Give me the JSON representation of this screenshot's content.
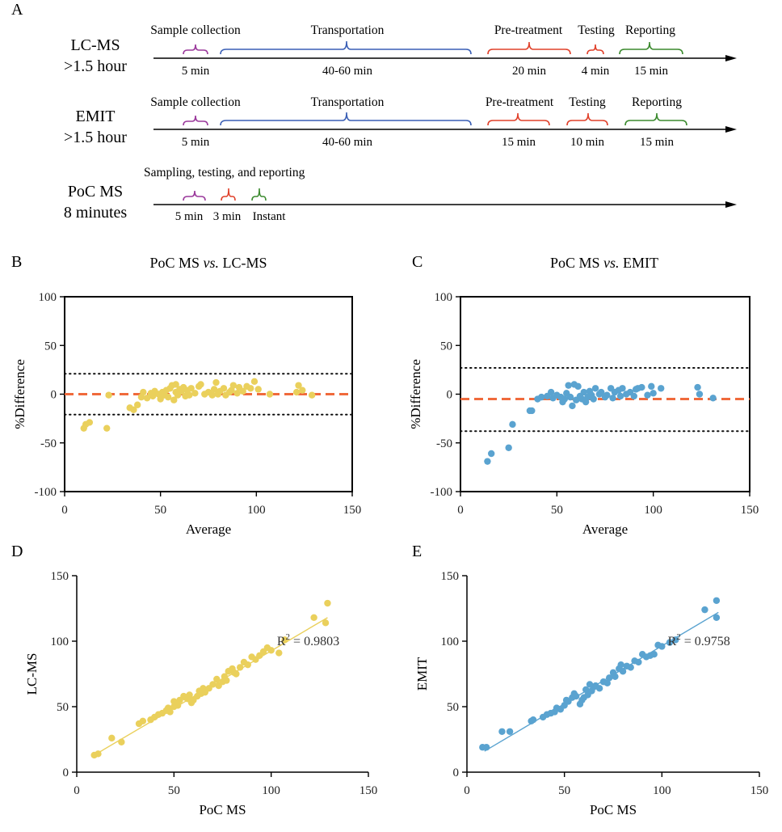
{
  "panelA": {
    "letter": "A",
    "rows": [
      {
        "name_line1": "LC-MS",
        "name_line2": ">1.5 hour",
        "steps": [
          {
            "label": "Sample collection",
            "time": "5 min",
            "color": "#9b3a9c"
          },
          {
            "label": "Transportation",
            "time": "40-60 min",
            "color": "#3a5fb5"
          },
          {
            "label": "Pre-treatment",
            "time": "20 min",
            "color": "#e0402a"
          },
          {
            "label": "Testing",
            "time": "4 min",
            "color": "#e0402a"
          },
          {
            "label": "Reporting",
            "time": "15 min",
            "color": "#3b8a2e"
          }
        ]
      },
      {
        "name_line1": "EMIT",
        "name_line2": ">1.5 hour",
        "steps": [
          {
            "label": "Sample collection",
            "time": "5 min",
            "color": "#9b3a9c"
          },
          {
            "label": "Transportation",
            "time": "40-60 min",
            "color": "#3a5fb5"
          },
          {
            "label": "Pre-treatment",
            "time": "15 min",
            "color": "#e0402a"
          },
          {
            "label": "Testing",
            "time": "10 min",
            "color": "#e0402a"
          },
          {
            "label": "Reporting",
            "time": "15 min",
            "color": "#3b8a2e"
          }
        ]
      },
      {
        "name_line1": "PoC MS",
        "name_line2": "8 minutes",
        "group_label": "Sampling, testing, and reporting",
        "steps": [
          {
            "label": "",
            "time": "5 min",
            "color": "#9b3a9c"
          },
          {
            "label": "",
            "time": "3 min",
            "color": "#e0402a"
          },
          {
            "label": "",
            "time": "Instant",
            "color": "#3b8a2e"
          }
        ]
      }
    ]
  },
  "chart_data": [
    {
      "panel": "B",
      "type": "scatter",
      "title": "PoC MS vs. LC-MS",
      "title_parts": [
        "PoC MS ",
        "vs.",
        " LC-MS"
      ],
      "xlabel": "Average",
      "ylabel": "%Difference",
      "xlim": [
        0,
        150
      ],
      "ylim": [
        -100,
        100
      ],
      "xticks": [
        "0",
        "50",
        "100",
        "150"
      ],
      "yticks": [
        "-100",
        "-50",
        "0",
        "50",
        "100"
      ],
      "color": "#ead05c",
      "mean_line": {
        "y": 0,
        "color": "#f06a3c"
      },
      "loa": [
        21,
        -21
      ],
      "points": [
        [
          10,
          -35
        ],
        [
          11,
          -31
        ],
        [
          13,
          -29
        ],
        [
          22,
          -35
        ],
        [
          23,
          -1
        ],
        [
          34,
          -14
        ],
        [
          36,
          -16
        ],
        [
          38,
          -11
        ],
        [
          40,
          -3
        ],
        [
          41,
          2
        ],
        [
          43,
          -4
        ],
        [
          45,
          1
        ],
        [
          46,
          -2
        ],
        [
          47,
          3
        ],
        [
          49,
          0
        ],
        [
          50,
          -5
        ],
        [
          51,
          2
        ],
        [
          52,
          -1
        ],
        [
          53,
          4
        ],
        [
          54,
          -3
        ],
        [
          55,
          6
        ],
        [
          56,
          9
        ],
        [
          57,
          -6
        ],
        [
          58,
          10
        ],
        [
          58,
          2
        ],
        [
          59,
          -1
        ],
        [
          60,
          5
        ],
        [
          61,
          3
        ],
        [
          62,
          7
        ],
        [
          63,
          -2
        ],
        [
          64,
          4
        ],
        [
          65,
          -1
        ],
        [
          66,
          6
        ],
        [
          68,
          1
        ],
        [
          70,
          8
        ],
        [
          71,
          10
        ],
        [
          73,
          0
        ],
        [
          75,
          2
        ],
        [
          77,
          -1
        ],
        [
          78,
          5
        ],
        [
          79,
          12
        ],
        [
          80,
          0
        ],
        [
          81,
          3
        ],
        [
          83,
          6
        ],
        [
          84,
          -1
        ],
        [
          86,
          2
        ],
        [
          87,
          4
        ],
        [
          88,
          9
        ],
        [
          90,
          1
        ],
        [
          91,
          7
        ],
        [
          93,
          3
        ],
        [
          95,
          8
        ],
        [
          97,
          6
        ],
        [
          99,
          13
        ],
        [
          101,
          5
        ],
        [
          107,
          0
        ],
        [
          121,
          2
        ],
        [
          122,
          9
        ],
        [
          124,
          4
        ],
        [
          129,
          -1
        ]
      ]
    },
    {
      "panel": "C",
      "type": "scatter",
      "title": "PoC MS vs. EMIT",
      "title_parts": [
        "PoC MS ",
        "vs.",
        " EMIT"
      ],
      "xlabel": "Average",
      "ylabel": "%Difference",
      "xlim": [
        0,
        150
      ],
      "ylim": [
        -100,
        100
      ],
      "xticks": [
        "0",
        "50",
        "100",
        "150"
      ],
      "yticks": [
        "-100",
        "-50",
        "0",
        "50",
        "100"
      ],
      "color": "#5aa3d0",
      "mean_line": {
        "y": -5,
        "color": "#f06a3c"
      },
      "loa": [
        27,
        -38
      ],
      "points": [
        [
          14,
          -69
        ],
        [
          16,
          -61
        ],
        [
          25,
          -55
        ],
        [
          27,
          -31
        ],
        [
          36,
          -17
        ],
        [
          37,
          -17
        ],
        [
          40,
          -5
        ],
        [
          42,
          -3
        ],
        [
          45,
          -2
        ],
        [
          47,
          2
        ],
        [
          48,
          -4
        ],
        [
          50,
          -1
        ],
        [
          52,
          -3
        ],
        [
          53,
          -8
        ],
        [
          54,
          -5
        ],
        [
          55,
          1
        ],
        [
          56,
          9
        ],
        [
          57,
          -3
        ],
        [
          58,
          -12
        ],
        [
          59,
          10
        ],
        [
          60,
          -6
        ],
        [
          61,
          8
        ],
        [
          62,
          -2
        ],
        [
          63,
          -5
        ],
        [
          64,
          2
        ],
        [
          65,
          -8
        ],
        [
          66,
          -3
        ],
        [
          67,
          3
        ],
        [
          68,
          -1
        ],
        [
          69,
          -5
        ],
        [
          70,
          6
        ],
        [
          72,
          0
        ],
        [
          73,
          2
        ],
        [
          75,
          -3
        ],
        [
          76,
          -1
        ],
        [
          78,
          6
        ],
        [
          79,
          -4
        ],
        [
          80,
          2
        ],
        [
          82,
          4
        ],
        [
          83,
          -2
        ],
        [
          84,
          6
        ],
        [
          86,
          0
        ],
        [
          88,
          2
        ],
        [
          90,
          -2
        ],
        [
          91,
          5
        ],
        [
          92,
          6
        ],
        [
          94,
          7
        ],
        [
          97,
          -1
        ],
        [
          99,
          8
        ],
        [
          100,
          1
        ],
        [
          104,
          6
        ],
        [
          123,
          7
        ],
        [
          124,
          0
        ],
        [
          131,
          -4
        ]
      ]
    },
    {
      "panel": "D",
      "type": "scatter",
      "xlabel": "PoC MS",
      "ylabel": "LC-MS",
      "xlim": [
        0,
        150
      ],
      "ylim": [
        0,
        150
      ],
      "xticks": [
        "0",
        "50",
        "100",
        "150"
      ],
      "yticks": [
        "0",
        "50",
        "100",
        "150"
      ],
      "color": "#ead05c",
      "annotation": {
        "base": "R",
        "sup": "2",
        "rest": " = 0.9803"
      },
      "fit_line": [
        [
          9,
          13
        ],
        [
          129,
          118
        ]
      ],
      "points": [
        [
          9,
          13
        ],
        [
          11,
          14
        ],
        [
          18,
          26
        ],
        [
          23,
          23
        ],
        [
          32,
          37
        ],
        [
          34,
          39
        ],
        [
          38,
          40
        ],
        [
          40,
          42
        ],
        [
          42,
          44
        ],
        [
          44,
          45
        ],
        [
          46,
          47
        ],
        [
          47,
          49
        ],
        [
          48,
          46
        ],
        [
          50,
          50
        ],
        [
          50,
          54
        ],
        [
          52,
          51
        ],
        [
          53,
          55
        ],
        [
          55,
          58
        ],
        [
          56,
          57
        ],
        [
          57,
          56
        ],
        [
          58,
          59
        ],
        [
          59,
          53
        ],
        [
          60,
          55
        ],
        [
          62,
          58
        ],
        [
          63,
          62
        ],
        [
          64,
          60
        ],
        [
          65,
          64
        ],
        [
          66,
          61
        ],
        [
          68,
          64
        ],
        [
          70,
          67
        ],
        [
          72,
          71
        ],
        [
          73,
          66
        ],
        [
          75,
          69
        ],
        [
          76,
          73
        ],
        [
          77,
          70
        ],
        [
          78,
          77
        ],
        [
          80,
          79
        ],
        [
          81,
          76
        ],
        [
          82,
          75
        ],
        [
          84,
          80
        ],
        [
          86,
          84
        ],
        [
          88,
          82
        ],
        [
          90,
          88
        ],
        [
          92,
          86
        ],
        [
          94,
          89
        ],
        [
          96,
          92
        ],
        [
          98,
          95
        ],
        [
          100,
          93
        ],
        [
          104,
          91
        ],
        [
          107,
          101
        ],
        [
          122,
          118
        ],
        [
          128,
          114
        ],
        [
          129,
          129
        ]
      ]
    },
    {
      "panel": "E",
      "type": "scatter",
      "xlabel": "PoC MS",
      "ylabel": "EMIT",
      "xlim": [
        0,
        150
      ],
      "ylim": [
        0,
        150
      ],
      "xticks": [
        "0",
        "50",
        "100",
        "150"
      ],
      "yticks": [
        "0",
        "50",
        "100",
        "150"
      ],
      "color": "#5aa3d0",
      "annotation": {
        "base": "R",
        "sup": "2",
        "rest": " = 0.9758"
      },
      "fit_line": [
        [
          9,
          16
        ],
        [
          129,
          122
        ]
      ],
      "points": [
        [
          8,
          19
        ],
        [
          10,
          19
        ],
        [
          18,
          31
        ],
        [
          22,
          31
        ],
        [
          33,
          39
        ],
        [
          34,
          40
        ],
        [
          39,
          42
        ],
        [
          41,
          44
        ],
        [
          43,
          45
        ],
        [
          45,
          46
        ],
        [
          46,
          49
        ],
        [
          48,
          48
        ],
        [
          50,
          51
        ],
        [
          51,
          55
        ],
        [
          52,
          54
        ],
        [
          54,
          57
        ],
        [
          55,
          60
        ],
        [
          56,
          58
        ],
        [
          58,
          52
        ],
        [
          59,
          55
        ],
        [
          60,
          57
        ],
        [
          61,
          63
        ],
        [
          62,
          59
        ],
        [
          63,
          67
        ],
        [
          64,
          62
        ],
        [
          65,
          65
        ],
        [
          66,
          66
        ],
        [
          68,
          64
        ],
        [
          70,
          69
        ],
        [
          72,
          68
        ],
        [
          73,
          72
        ],
        [
          75,
          76
        ],
        [
          76,
          73
        ],
        [
          78,
          79
        ],
        [
          79,
          82
        ],
        [
          80,
          77
        ],
        [
          82,
          81
        ],
        [
          84,
          80
        ],
        [
          86,
          85
        ],
        [
          88,
          84
        ],
        [
          90,
          90
        ],
        [
          92,
          88
        ],
        [
          94,
          89
        ],
        [
          96,
          90
        ],
        [
          98,
          97
        ],
        [
          100,
          96
        ],
        [
          104,
          99
        ],
        [
          107,
          101
        ],
        [
          122,
          124
        ],
        [
          128,
          118
        ],
        [
          128,
          131
        ]
      ]
    }
  ]
}
